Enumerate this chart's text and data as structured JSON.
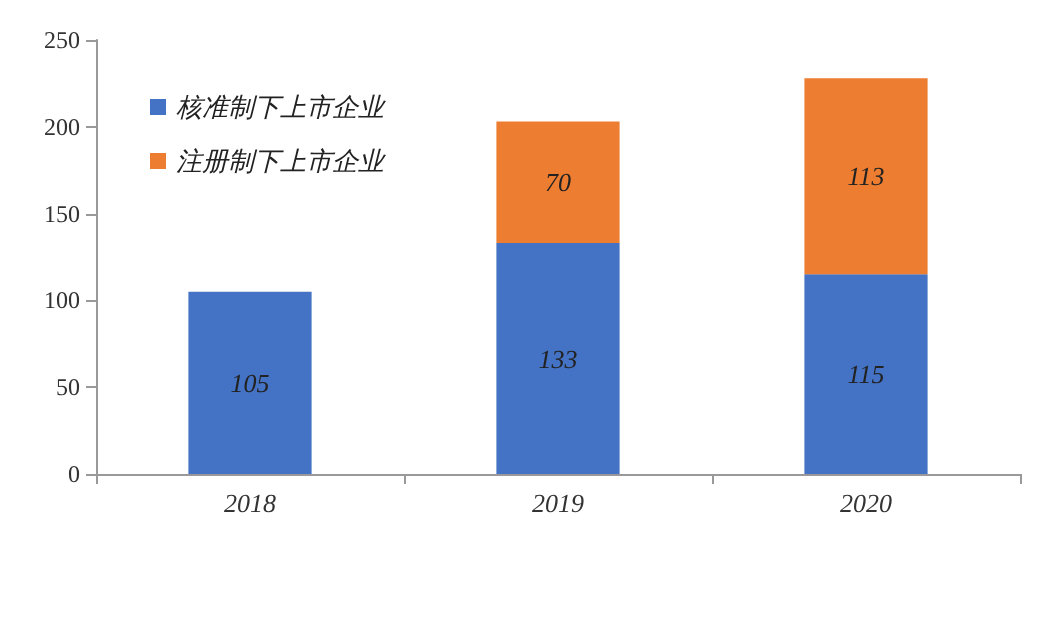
{
  "chart_data": {
    "type": "bar",
    "stacked": true,
    "categories": [
      "2018",
      "2019",
      "2020"
    ],
    "series": [
      {
        "name": "核准制下上市企业",
        "color": "#4472c4",
        "values": [
          105,
          133,
          115
        ]
      },
      {
        "name": "注册制下上市企业",
        "color": "#ed7d31",
        "values": [
          null,
          70,
          113
        ]
      }
    ],
    "ylim": [
      0,
      250
    ],
    "yticks": [
      0,
      50,
      100,
      150,
      200,
      250
    ],
    "grid": false,
    "legend": "top left",
    "data_labels": true
  }
}
